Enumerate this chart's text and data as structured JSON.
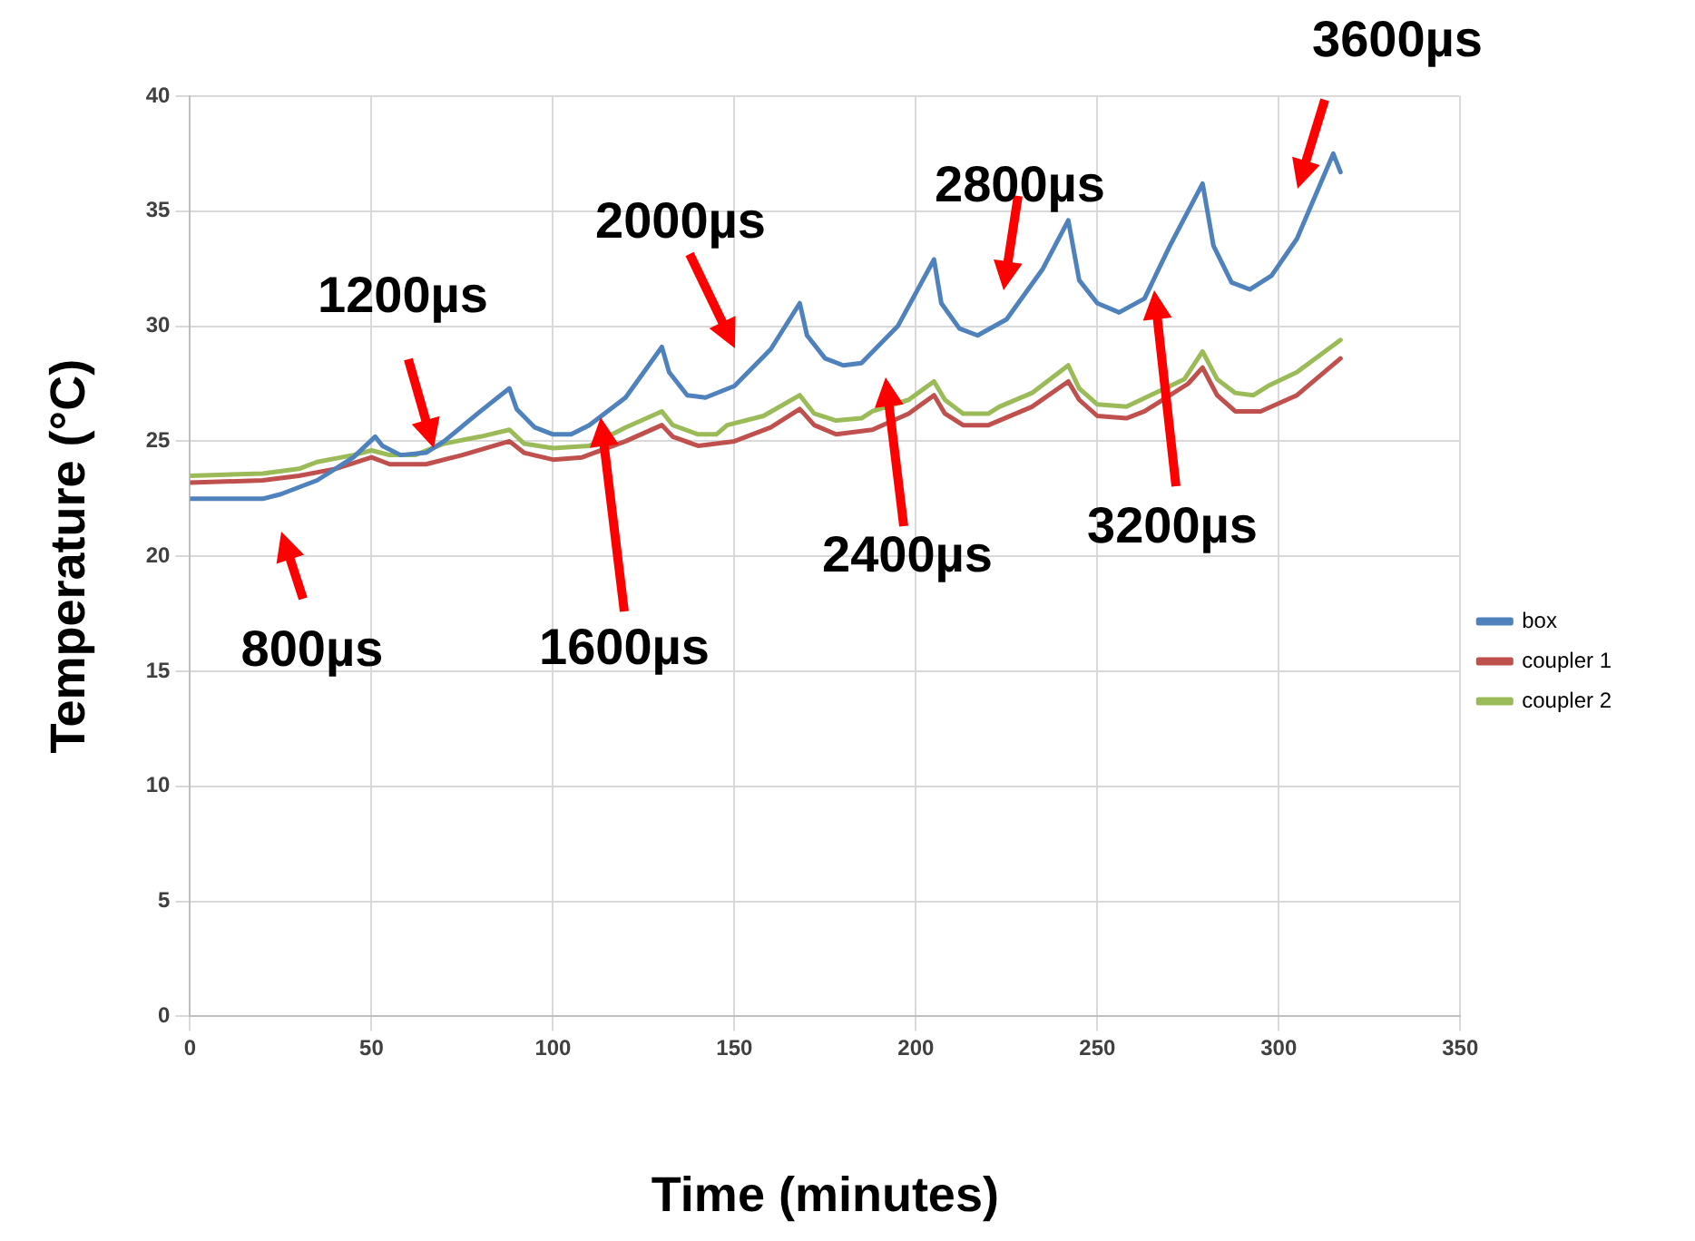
{
  "chart_data": {
    "type": "line",
    "xlabel": "Time (minutes)",
    "ylabel": "Temperature (°C)",
    "xlim": [
      0,
      350
    ],
    "xticks": [
      0,
      50,
      100,
      150,
      200,
      250,
      300,
      350
    ],
    "ylim": [
      0,
      40
    ],
    "yticks": [
      0,
      5,
      10,
      15,
      20,
      25,
      30,
      35,
      40
    ],
    "grid": true,
    "legend": "right",
    "marker": "none",
    "line_style": "solid",
    "series": [
      {
        "name": "box",
        "color": "#4f81bd",
        "x": [
          0,
          10,
          20,
          25,
          35,
          45,
          51,
          53,
          58,
          65,
          70,
          80,
          88,
          90,
          95,
          100,
          105,
          110,
          120,
          130,
          132,
          137,
          142,
          150,
          160,
          168,
          170,
          175,
          180,
          185,
          195,
          205,
          207,
          212,
          217,
          225,
          235,
          242,
          245,
          250,
          256,
          263,
          270,
          279,
          282,
          287,
          292,
          298,
          305,
          315,
          317
        ],
        "values": [
          22.5,
          22.5,
          22.5,
          22.7,
          23.3,
          24.3,
          25.2,
          24.8,
          24.4,
          24.5,
          25.0,
          26.3,
          27.3,
          26.4,
          25.6,
          25.3,
          25.3,
          25.7,
          26.9,
          29.1,
          28.0,
          27.0,
          26.9,
          27.4,
          29.0,
          31.0,
          29.6,
          28.6,
          28.3,
          28.4,
          30.0,
          32.9,
          31.0,
          29.9,
          29.6,
          30.3,
          32.5,
          34.6,
          32.0,
          31.0,
          30.6,
          31.2,
          33.5,
          36.2,
          33.5,
          31.9,
          31.6,
          32.2,
          33.8,
          37.5,
          36.7
        ]
      },
      {
        "name": "coupler 1",
        "color": "#c0504d",
        "x": [
          0,
          20,
          30,
          40,
          50,
          55,
          65,
          75,
          88,
          92,
          100,
          108,
          120,
          130,
          133,
          140,
          150,
          160,
          168,
          172,
          178,
          188,
          198,
          205,
          208,
          213,
          220,
          232,
          242,
          245,
          250,
          258,
          263,
          275,
          279,
          283,
          288,
          295,
          305,
          317
        ],
        "values": [
          23.2,
          23.3,
          23.5,
          23.8,
          24.3,
          24.0,
          24.0,
          24.4,
          25.0,
          24.5,
          24.2,
          24.3,
          25.0,
          25.7,
          25.2,
          24.8,
          25.0,
          25.6,
          26.4,
          25.7,
          25.3,
          25.5,
          26.2,
          27.0,
          26.2,
          25.7,
          25.7,
          26.5,
          27.6,
          26.8,
          26.1,
          26.0,
          26.3,
          27.5,
          28.2,
          27.0,
          26.3,
          26.3,
          27.0,
          28.6
        ]
      },
      {
        "name": "coupler 2",
        "color": "#9bbb59",
        "x": [
          0,
          20,
          30,
          35,
          45,
          50,
          55,
          62,
          70,
          80,
          88,
          92,
          100,
          110,
          120,
          130,
          133,
          140,
          145,
          148,
          158,
          168,
          172,
          178,
          185,
          188,
          198,
          205,
          208,
          213,
          220,
          223,
          232,
          242,
          245,
          250,
          258,
          262,
          274,
          279,
          283,
          288,
          293,
          297,
          305,
          317
        ],
        "values": [
          23.5,
          23.6,
          23.8,
          24.1,
          24.4,
          24.6,
          24.4,
          24.4,
          24.9,
          25.2,
          25.5,
          24.9,
          24.7,
          24.8,
          25.6,
          26.3,
          25.7,
          25.3,
          25.3,
          25.7,
          26.1,
          27.0,
          26.2,
          25.9,
          26.0,
          26.3,
          26.8,
          27.6,
          26.8,
          26.2,
          26.2,
          26.5,
          27.1,
          28.3,
          27.3,
          26.6,
          26.5,
          26.8,
          27.7,
          28.9,
          27.7,
          27.1,
          27.0,
          27.4,
          28.0,
          29.4
        ]
      }
    ],
    "annotations": [
      "800µs",
      "1200µs",
      "1600µs",
      "2000µs",
      "2400µs",
      "2800µs",
      "3200µs",
      "3600µs"
    ]
  }
}
